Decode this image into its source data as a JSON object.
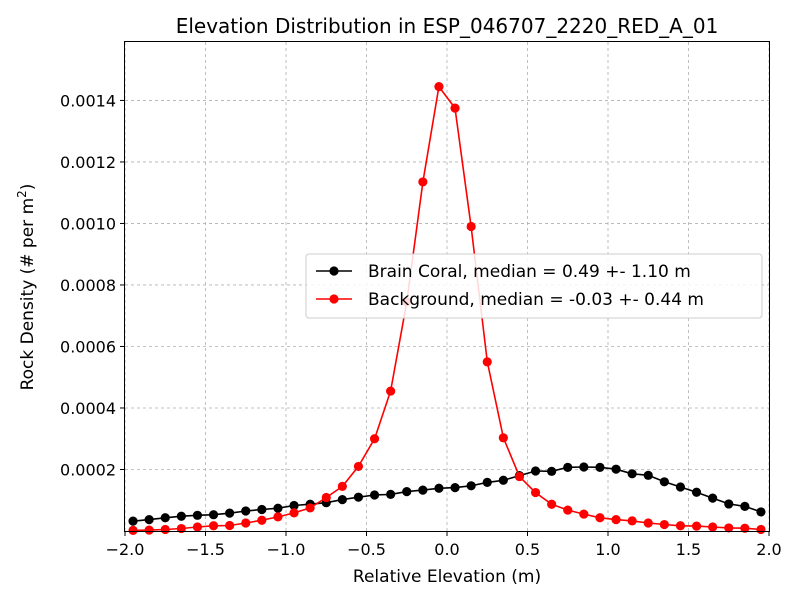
{
  "chart_data": {
    "type": "line",
    "title": "Elevation Distribution in ESP_046707_2220_RED_A_01",
    "xlabel": "Relative Elevation (m)",
    "ylabel": "Rock Density (# per m²)",
    "ylabel_main": "Rock Density (# per m",
    "ylabel_sup": "2",
    "ylabel_tail": ")",
    "xlim": [
      -2.0,
      2.0
    ],
    "ylim": [
      0.0,
      0.00159
    ],
    "xticks": [
      -2.0,
      -1.5,
      -1.0,
      -0.5,
      0.0,
      0.5,
      1.0,
      1.5,
      2.0
    ],
    "xtick_labels": [
      "−2.0",
      "−1.5",
      "−1.0",
      "−0.5",
      "0.0",
      "0.5",
      "1.0",
      "1.5",
      "2.0"
    ],
    "yticks": [
      0.0002,
      0.0004,
      0.0006,
      0.0008,
      0.001,
      0.0012,
      0.0014
    ],
    "ytick_labels": [
      "0.0002",
      "0.0004",
      "0.0006",
      "0.0008",
      "0.0010",
      "0.0012",
      "0.0014"
    ],
    "grid": true,
    "legend_position": "center-right",
    "x": [
      -1.95,
      -1.85,
      -1.75,
      -1.65,
      -1.55,
      -1.45,
      -1.35,
      -1.25,
      -1.15,
      -1.05,
      -0.95,
      -0.85,
      -0.75,
      -0.65,
      -0.55,
      -0.45,
      -0.35,
      -0.25,
      -0.15,
      -0.05,
      0.05,
      0.15,
      0.25,
      0.35,
      0.45,
      0.55,
      0.65,
      0.75,
      0.85,
      0.95,
      1.05,
      1.15,
      1.25,
      1.35,
      1.45,
      1.55,
      1.65,
      1.75,
      1.85,
      1.95
    ],
    "series": [
      {
        "name": "Brain Coral, median = 0.49 +- 1.10 m",
        "color": "#000000",
        "values": [
          3.2e-05,
          3.7e-05,
          4.3e-05,
          4.8e-05,
          5.1e-05,
          5.3e-05,
          5.8e-05,
          6.5e-05,
          7e-05,
          7.4e-05,
          8.3e-05,
          8.7e-05,
          9.2e-05,
          0.000102,
          0.00011,
          0.000117,
          0.000119,
          0.000128,
          0.000133,
          0.000139,
          0.000141,
          0.000147,
          0.000158,
          0.000165,
          0.00018,
          0.000195,
          0.000194,
          0.000207,
          0.000208,
          0.000207,
          0.000201,
          0.000186,
          0.000181,
          0.00016,
          0.000143,
          0.000126,
          0.000107,
          8.8e-05,
          8e-05,
          6.2e-05
        ]
      },
      {
        "name": "Background, median = -0.03 +- 0.44 m",
        "color": "#ff0000",
        "values": [
          2e-06,
          3e-06,
          5e-06,
          8e-06,
          1.3e-05,
          1.7e-05,
          1.8e-05,
          2.6e-05,
          3.5e-05,
          4.6e-05,
          5.9e-05,
          7.5e-05,
          0.000109,
          0.000145,
          0.00021,
          0.0003,
          0.000455,
          0.000745,
          0.001135,
          0.001445,
          0.001375,
          0.00099,
          0.00055,
          0.000303,
          0.000177,
          0.000125,
          8.7e-05,
          6.8e-05,
          5.5e-05,
          4.3e-05,
          3.7e-05,
          3.3e-05,
          2.6e-05,
          2.1e-05,
          1.7e-05,
          1.6e-05,
          1.3e-05,
          1e-05,
          9e-06,
          5e-06
        ]
      }
    ]
  }
}
